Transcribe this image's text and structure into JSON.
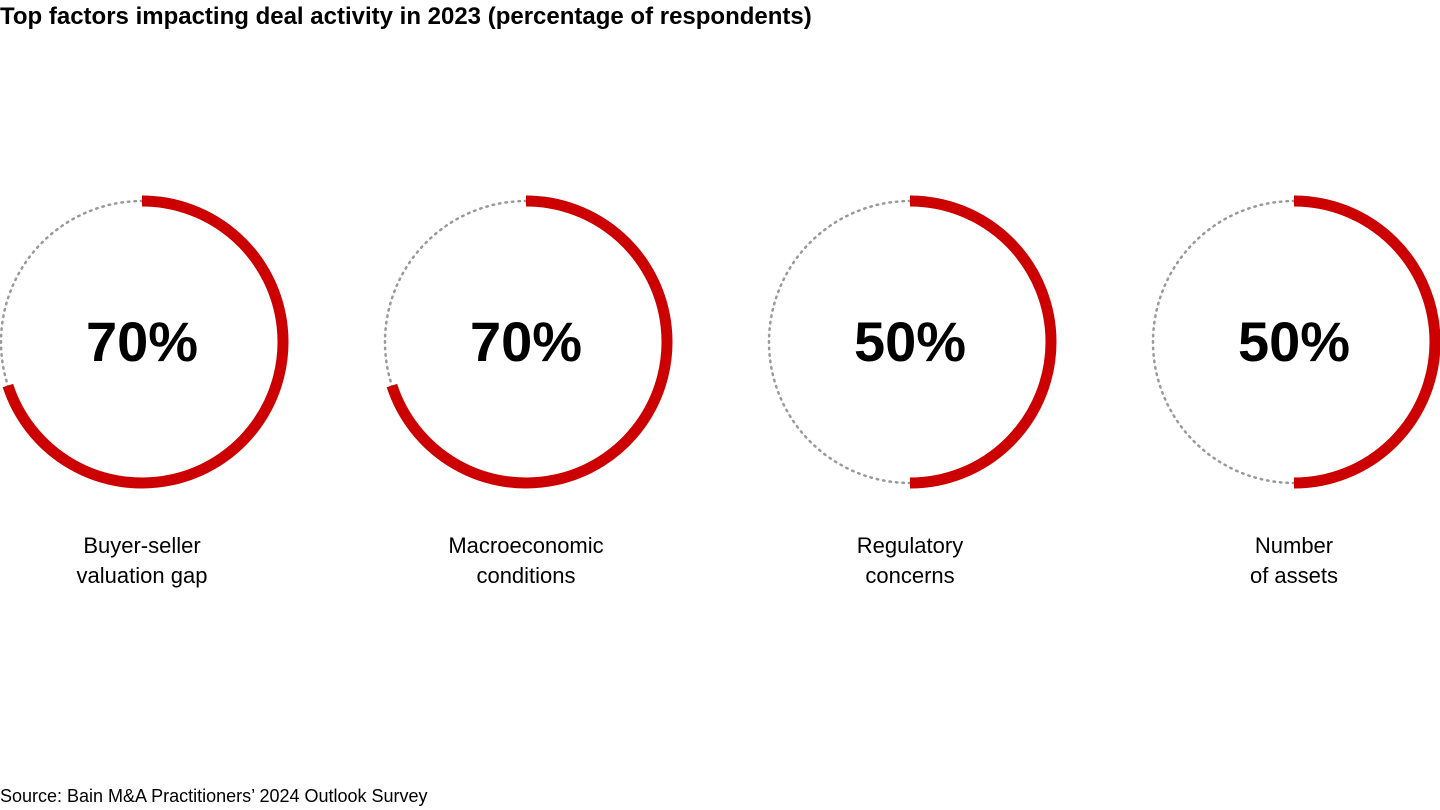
{
  "title": "Top factors impacting deal activity in 2023 (percentage of respondents)",
  "source": "Source: Bain M&A Practitioners’ 2024 Outlook Survey",
  "colors": {
    "accent": "#cc0000",
    "track": "#999999",
    "text": "#000000"
  },
  "chart_data": {
    "type": "donut",
    "title": "Top factors impacting deal activity in 2023 (percentage of respondents)",
    "unit": "%",
    "items": [
      {
        "label_lines": [
          "Buyer-seller",
          "valuation gap"
        ],
        "value": 70,
        "display": "70%"
      },
      {
        "label_lines": [
          "Macroeconomic",
          "conditions"
        ],
        "value": 70,
        "display": "70%"
      },
      {
        "label_lines": [
          "Regulatory",
          "concerns"
        ],
        "value": 50,
        "display": "50%"
      },
      {
        "label_lines": [
          "Number",
          "of assets"
        ],
        "value": 50,
        "display": "50%"
      }
    ]
  }
}
